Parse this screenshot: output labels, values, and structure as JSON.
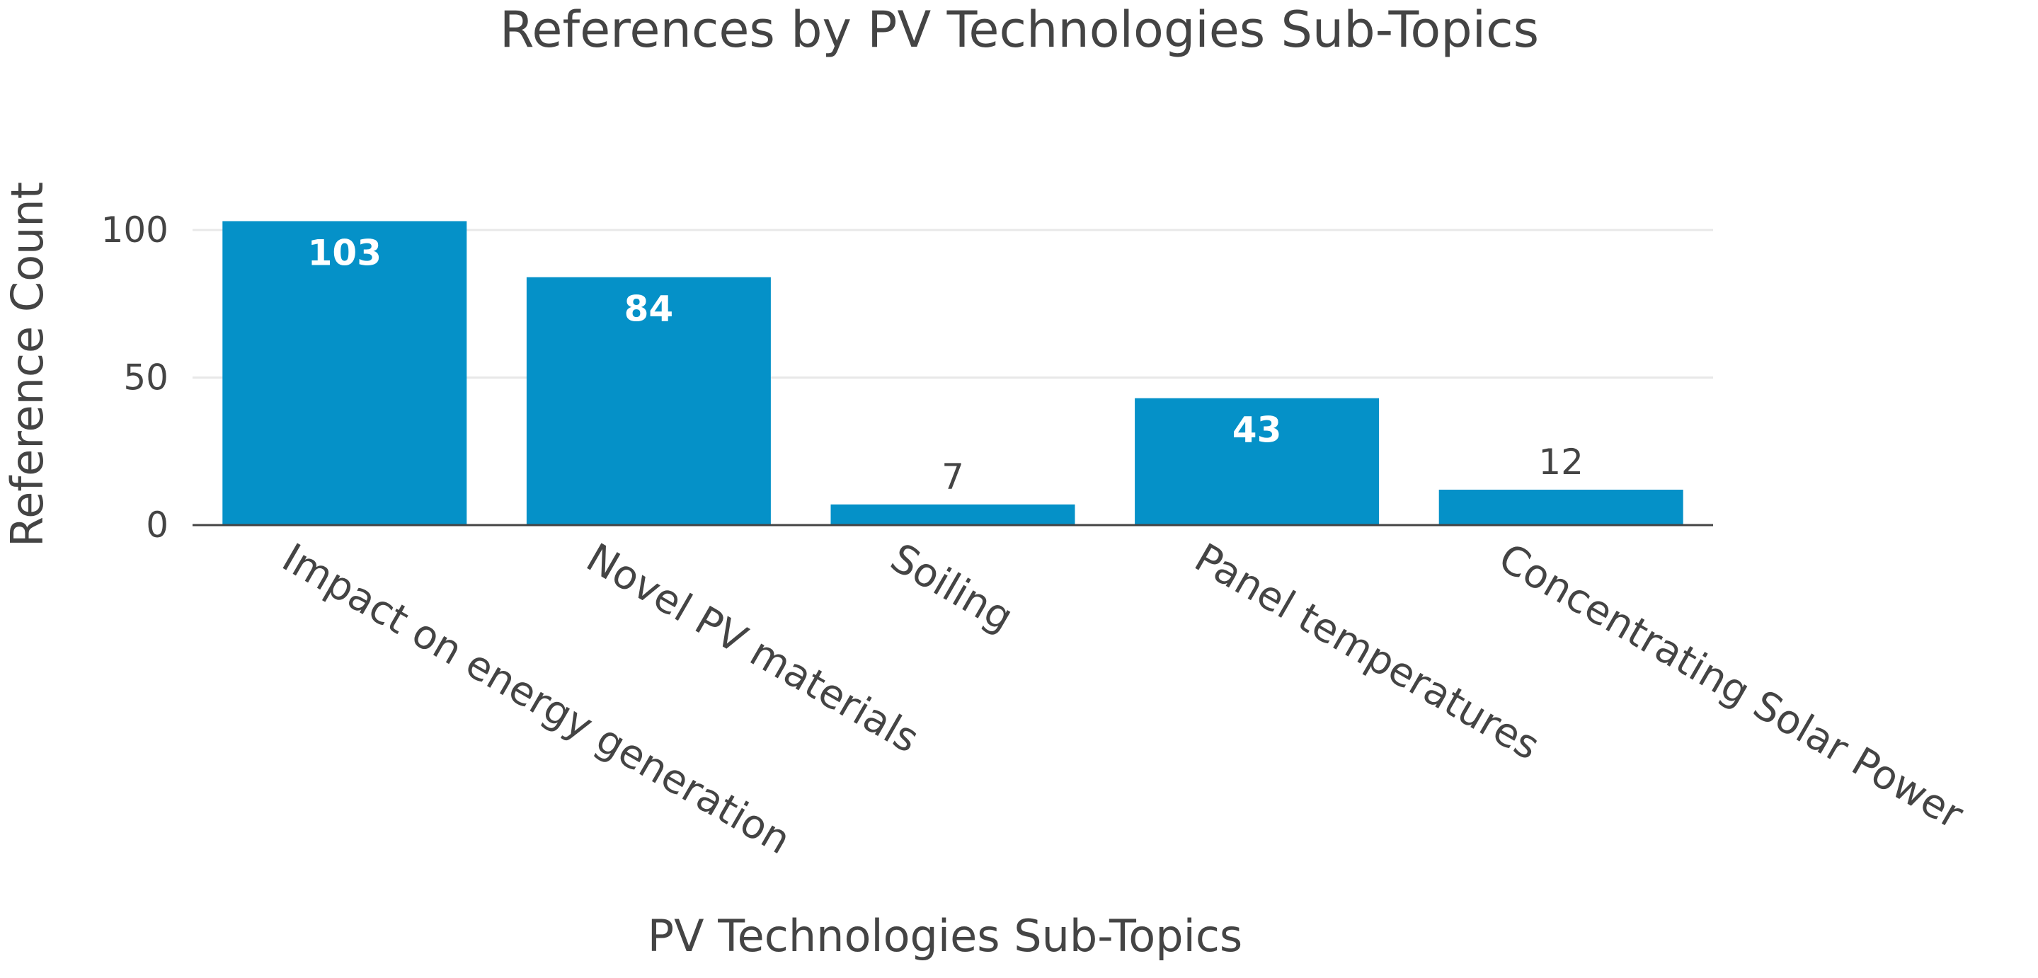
{
  "chart_data": {
    "type": "bar",
    "title": "References by PV Technologies Sub-Topics",
    "xlabel": "PV Technologies Sub-Topics",
    "ylabel": "Reference Count",
    "categories": [
      "Impact on energy generation",
      "Novel PV materials",
      "Soiling",
      "Panel temperatures",
      "Concentrating Solar Power"
    ],
    "values": [
      103,
      84,
      7,
      43,
      12
    ],
    "data_labels": [
      "103",
      "84",
      "7",
      "43",
      "12"
    ],
    "yticks": [
      0,
      50,
      100
    ],
    "ytick_labels": [
      "0",
      "50",
      "100"
    ],
    "ylim": [
      0,
      110
    ],
    "grid": true,
    "bar_color": "#0591c8"
  }
}
